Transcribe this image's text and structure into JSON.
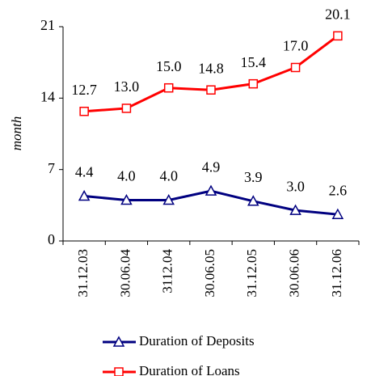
{
  "chart_data": {
    "type": "line",
    "y_label": "month",
    "categories": [
      "31.12.03",
      "30.06.04",
      "3112.04",
      "30.06.05",
      "31.12.05",
      "30.06.06",
      "31.12.06"
    ],
    "series": [
      {
        "name": "Duration of Deposits",
        "color": "#000080",
        "marker": "triangle",
        "values": [
          4.4,
          4.0,
          4.0,
          4.9,
          3.9,
          3.0,
          2.6
        ],
        "value_labels": [
          "4.4",
          "4.0",
          "4.0",
          "4.9",
          "3.9",
          "3.0",
          "2.6"
        ]
      },
      {
        "name": "Duration of Loans",
        "color": "#ff0000",
        "marker": "square",
        "values": [
          12.7,
          13.0,
          15.0,
          14.8,
          15.4,
          17.0,
          20.1
        ],
        "value_labels": [
          "12.7",
          "13.0",
          "15.0",
          "14.8",
          "15.4",
          "17.0",
          "20.1"
        ]
      }
    ],
    "ylim": [
      0,
      21
    ],
    "yticks": [
      0,
      7,
      14,
      21
    ],
    "grid": false,
    "legend": "bottom"
  }
}
